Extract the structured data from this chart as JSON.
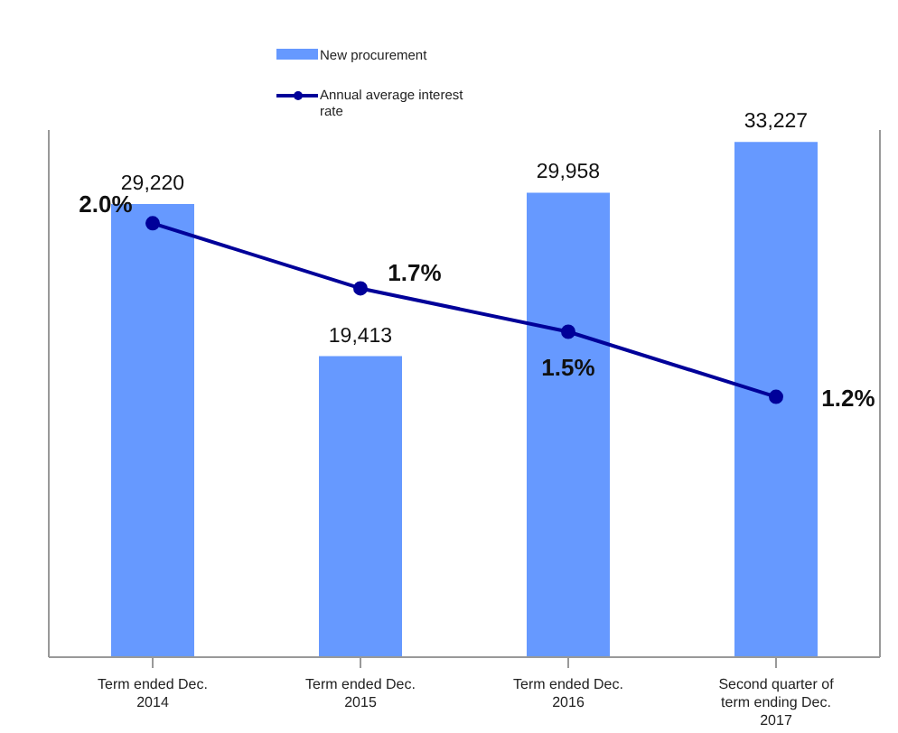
{
  "chart_data": {
    "type": "bar",
    "categories": [
      "Term ended Dec. 2014",
      "Term ended Dec. 2015",
      "Term ended Dec. 2016",
      "Second quarter of term ending Dec. 2017"
    ],
    "series": [
      {
        "name": "New procurement",
        "color": "#6699ff",
        "values": [
          29220,
          19413,
          29958,
          33227
        ],
        "value_labels": [
          "29,220",
          "19,413",
          "29,958",
          "33,227"
        ]
      },
      {
        "name": "Annual average interest rate",
        "type": "line",
        "axis": "y2",
        "color": "#000099",
        "values": [
          2.0,
          1.7,
          1.5,
          1.2
        ],
        "value_labels": [
          "2.0%",
          "1.7%",
          "1.5%",
          "1.2%"
        ]
      }
    ],
    "ylim": [
      0,
      34000
    ],
    "y2lim": [
      0,
      2.43
    ],
    "legend": "top",
    "marker": "circle",
    "line_style": "solid"
  }
}
